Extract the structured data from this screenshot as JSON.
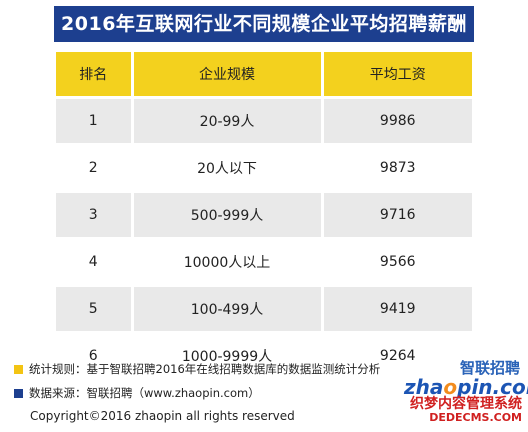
{
  "title": "2016年互联网行业不同规模企业平均招聘薪酬",
  "table": {
    "headers": [
      "排名",
      "企业规模",
      "平均工资"
    ],
    "rows": [
      {
        "rank": "1",
        "size": "20-99人",
        "salary": "9986"
      },
      {
        "rank": "2",
        "size": "20人以下",
        "salary": "9873"
      },
      {
        "rank": "3",
        "size": "500-999人",
        "salary": "9716"
      },
      {
        "rank": "4",
        "size": "10000人以上",
        "salary": "9566"
      },
      {
        "rank": "5",
        "size": "100-499人",
        "salary": "9419"
      },
      {
        "rank": "6",
        "size": "1000-9999人",
        "salary": "9264"
      }
    ]
  },
  "notes": {
    "rule": "统计规则：基于智联招聘2016年在线招聘数据库的数据监测统计分析",
    "source": "数据来源：智联招聘（www.zhaopin.com）"
  },
  "copyright": "Copyright©2016 zhaopin all rights reserved",
  "logo": {
    "brand_cn": "智联招聘",
    "brand_en_pre": "zha",
    "brand_en_o": "o",
    "brand_en_post": "pin.com"
  },
  "watermark": {
    "cn": "织梦内容管理系统",
    "en": "DEDECMS.COM"
  },
  "colors": {
    "title_bg": "#1d3f8f",
    "header_bg": "#f3d11e",
    "row_alt": "#e9e9e9",
    "bullet_rule": "#f3c413",
    "bullet_source": "#1d3f8f"
  },
  "chart_data": {
    "type": "table",
    "title": "2016年互联网行业不同规模企业平均招聘薪酬",
    "columns": [
      "排名",
      "企业规模",
      "平均工资"
    ],
    "categories": [
      "20-99人",
      "20人以下",
      "500-999人",
      "10000人以上",
      "100-499人",
      "1000-9999人"
    ],
    "values": [
      9986,
      9873,
      9716,
      9566,
      9419,
      9264
    ]
  }
}
